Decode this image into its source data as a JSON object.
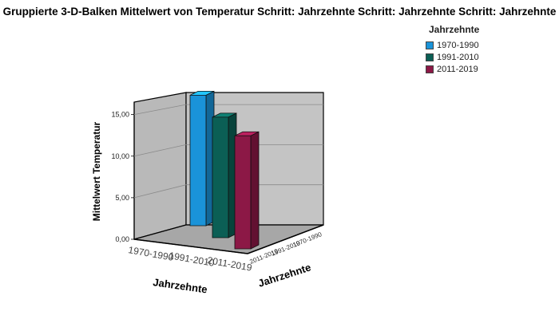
{
  "chart_data": {
    "type": "bar",
    "title": "Gruppierte 3-D-Balken Mittelwert von Temperatur Schritt: Jahrzehnte Schritt: Jahrzehnte Schritt: Jahrzehnte",
    "ylabel": "Mittelwert Temperatur",
    "xlabel": "Jahrzehnte",
    "zlabel": "Jahrzehnte",
    "legend_title": "Jahrzehnte",
    "ylim": [
      0,
      16.5
    ],
    "yticks": [
      "0,00",
      "5,00",
      "10,00",
      "15,00"
    ],
    "x_categories": [
      "1970-1990",
      "1991-2010",
      "2011-2019"
    ],
    "z_categories": [
      "2011-2019",
      "1991-2010",
      "1970-1990"
    ],
    "series": [
      {
        "name": "1970-1990",
        "color": "#1a93d9",
        "value": 15.7
      },
      {
        "name": "1991-2010",
        "color": "#0b5f55",
        "value": 14.5
      },
      {
        "name": "2011-2019",
        "color": "#8c1846",
        "value": 13.6
      }
    ]
  }
}
